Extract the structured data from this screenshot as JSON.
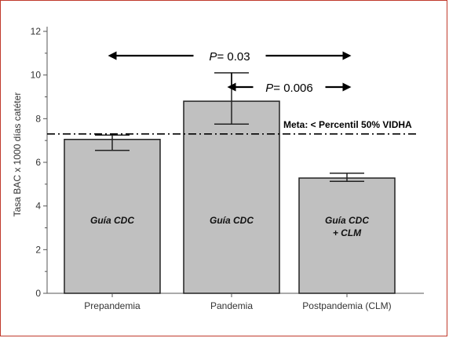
{
  "chart_data": {
    "type": "bar",
    "categories": [
      "Prepandemia",
      "Pandemia",
      "Postpandemia (CLM)"
    ],
    "values": [
      7.05,
      8.8,
      5.28
    ],
    "error_low": [
      6.55,
      7.75,
      5.13
    ],
    "error_high": [
      7.25,
      10.1,
      5.5
    ],
    "bar_labels": [
      [
        "Guía CDC"
      ],
      [
        "Guía CDC"
      ],
      [
        "Guía CDC",
        "+ CLM"
      ]
    ],
    "xlabel": "",
    "ylabel": "Tasa BAC x 1000 días catéter",
    "ylim": [
      0,
      12
    ],
    "yticks": [
      0,
      2,
      4,
      6,
      8,
      10,
      12
    ],
    "reference_line": {
      "value": 7.3,
      "label": "Meta: < Percentil 50% VIDHA"
    },
    "comparisons": [
      {
        "from": 0,
        "to": 2,
        "p_symbol": "P",
        "p_value": "= 0.03"
      },
      {
        "from": 1,
        "to": 2,
        "p_symbol": "P",
        "p_value": "= 0.006"
      }
    ],
    "bar_color": "#c0c0c0",
    "grid": false
  }
}
